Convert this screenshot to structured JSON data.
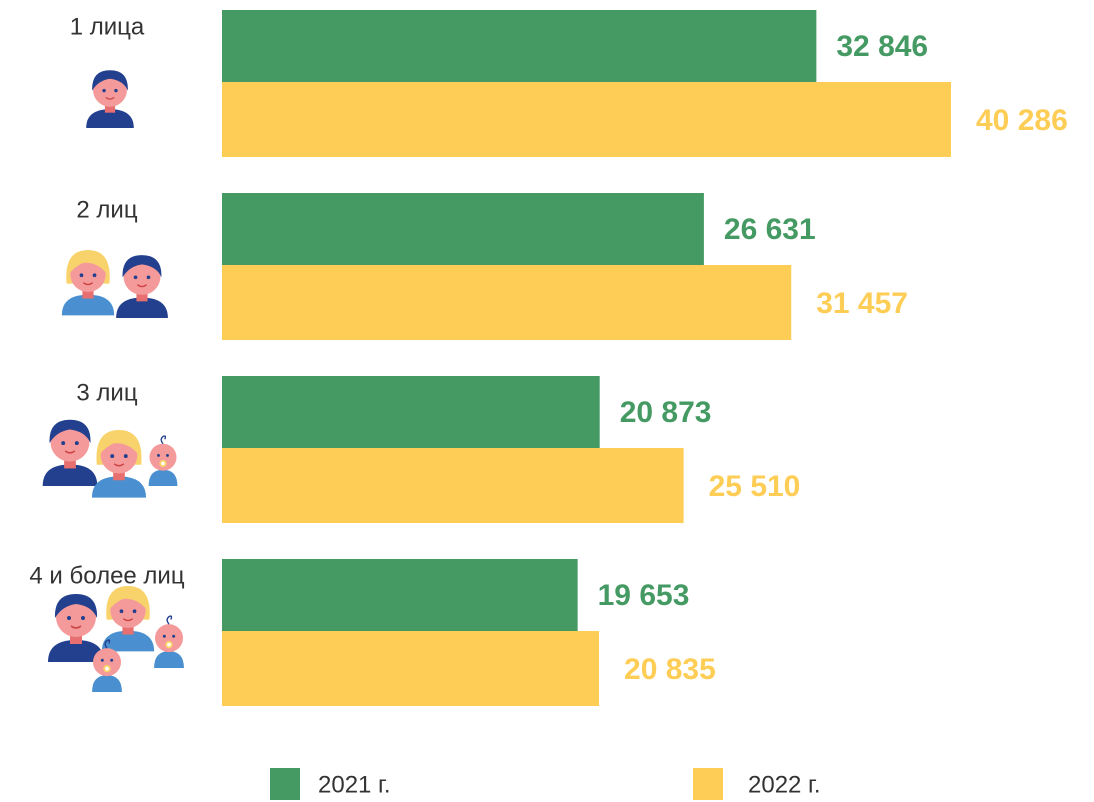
{
  "chart_data": {
    "type": "hbar",
    "categories": [
      "1 лица",
      "2 лиц",
      "3 лиц",
      "4 и более лиц"
    ],
    "series": [
      {
        "name": "2021 г.",
        "color": "#459a63",
        "values": [
          32846,
          26631,
          20873,
          19653
        ],
        "value_labels": [
          "32 846",
          "26 631",
          "20 873",
          "19 653"
        ]
      },
      {
        "name": "2022 г.",
        "color": "#fecd55",
        "values": [
          40286,
          31457,
          25510,
          20835
        ],
        "value_labels": [
          "40 286",
          "31 457",
          "25 510",
          "20 835"
        ]
      }
    ]
  }
}
